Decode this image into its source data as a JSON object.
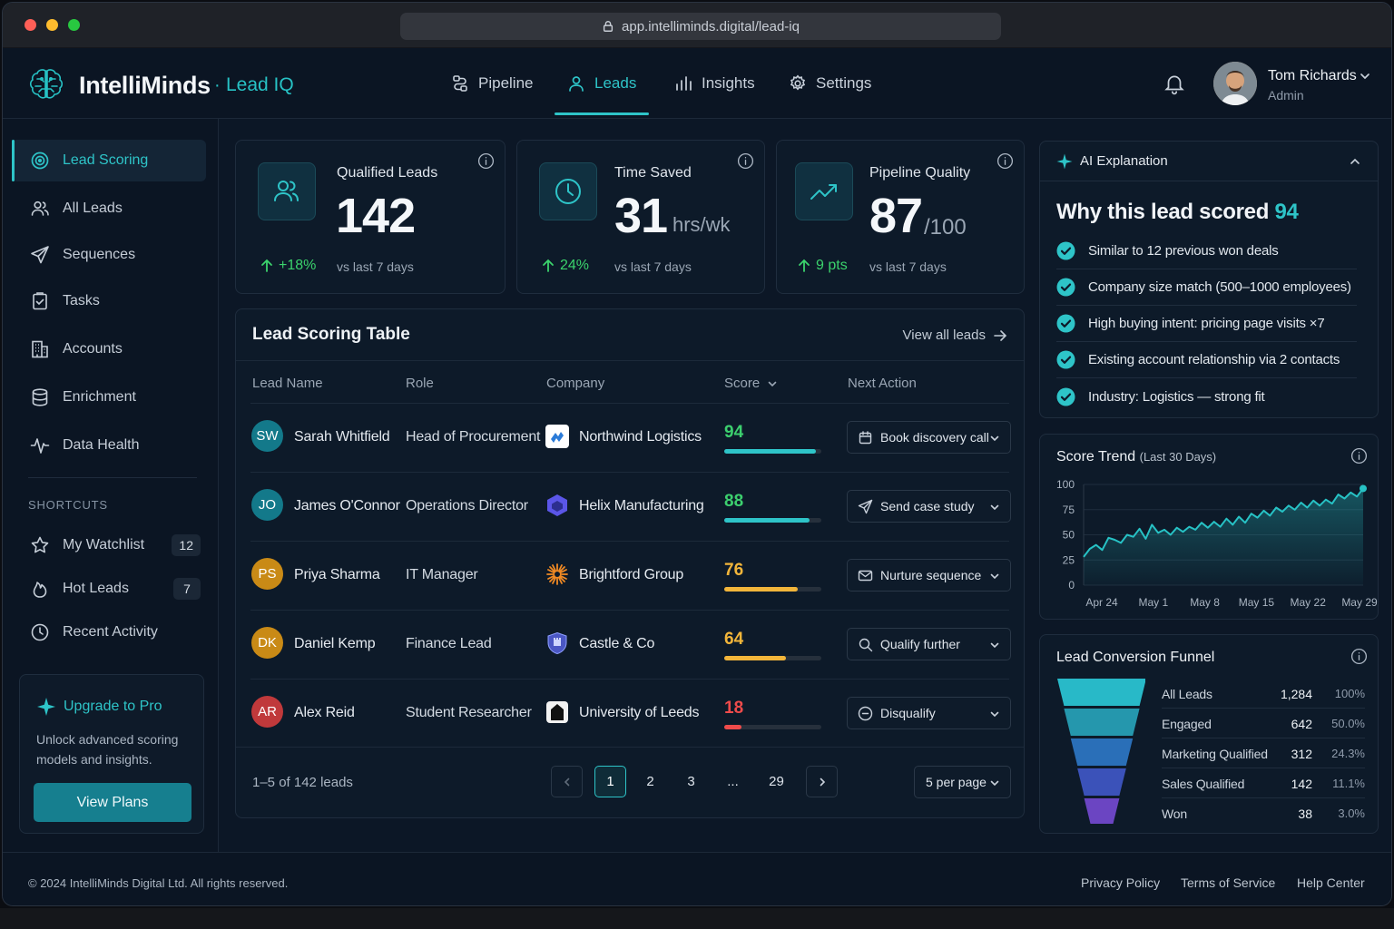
{
  "browser": {
    "url": "app.intelliminds.digital/lead-iq"
  },
  "brand": {
    "name": "IntelliMinds",
    "separator": "·",
    "product": "Lead IQ"
  },
  "nav": {
    "items": [
      {
        "label": "Pipeline",
        "icon": "pipeline-icon"
      },
      {
        "label": "Leads",
        "icon": "user-icon"
      },
      {
        "label": "Insights",
        "icon": "bar-chart-icon"
      },
      {
        "label": "Settings",
        "icon": "gear-icon"
      }
    ],
    "active": "Leads"
  },
  "user": {
    "name": "Tom Richards",
    "role": "Admin"
  },
  "sidebar": {
    "items": [
      {
        "label": "Lead Scoring",
        "icon": "target-icon"
      },
      {
        "label": "All Leads",
        "icon": "users-icon"
      },
      {
        "label": "Sequences",
        "icon": "send-icon"
      },
      {
        "label": "Tasks",
        "icon": "clipboard-icon"
      },
      {
        "label": "Accounts",
        "icon": "building-icon"
      },
      {
        "label": "Enrichment",
        "icon": "database-icon"
      },
      {
        "label": "Data Health",
        "icon": "pulse-icon"
      }
    ],
    "shortcuts_label": "SHORTCUTS",
    "shortcuts": [
      {
        "label": "My Watchlist",
        "icon": "star-icon",
        "badge": "12"
      },
      {
        "label": "Hot Leads",
        "icon": "flame-icon",
        "badge": "7"
      },
      {
        "label": "Recent Activity",
        "icon": "clock-icon"
      }
    ],
    "upgrade": {
      "title": "Upgrade to Pro",
      "text": "Unlock advanced scoring models and insights.",
      "button": "View Plans"
    }
  },
  "kpis": [
    {
      "label": "Qualified Leads",
      "value": "142",
      "unit": "",
      "delta": "+18%",
      "sub": "vs last 7 days",
      "icon": "users-icon"
    },
    {
      "label": "Time Saved",
      "value": "31",
      "unit": "hrs/wk",
      "delta": "24%",
      "sub": "vs last 7 days",
      "icon": "clock-icon"
    },
    {
      "label": "Pipeline Quality",
      "value": "87",
      "unit": "/100",
      "delta": "9 pts",
      "sub": "vs last 7 days",
      "icon": "trend-up-icon"
    }
  ],
  "table": {
    "title": "Lead Scoring Table",
    "view_all": "View all leads",
    "columns": [
      "Lead Name",
      "Role",
      "Company",
      "Score",
      "Next Action"
    ],
    "rows": [
      {
        "initials": "SW",
        "avatar_color": "#13798a",
        "name": "Sarah Whitfield",
        "role": "Head of Procurement",
        "company": "Northwind Logistics",
        "logo": "northwind-logo",
        "score": 94,
        "score_text": "94",
        "score_color": "#3ccf6e",
        "bar_color": "#2ec4c8",
        "action": "Book discovery call",
        "action_icon": "calendar-icon"
      },
      {
        "initials": "JO",
        "avatar_color": "#13798a",
        "name": "James O'Connor",
        "role": "Operations Director",
        "company": "Helix Manufacturing",
        "logo": "helix-logo",
        "score": 88,
        "score_text": "88",
        "score_color": "#3ccf6e",
        "bar_color": "#2ec4c8",
        "action": "Send case study",
        "action_icon": "send-icon"
      },
      {
        "initials": "PS",
        "avatar_color": "#c98a16",
        "name": "Priya Sharma",
        "role": "IT Manager",
        "company": "Brightford Group",
        "logo": "brightford-logo",
        "score": 76,
        "score_text": "76",
        "score_color": "#f2b53a",
        "bar_color": "#f2b53a",
        "action": "Nurture sequence",
        "action_icon": "mail-icon"
      },
      {
        "initials": "DK",
        "avatar_color": "#c98a16",
        "name": "Daniel Kemp",
        "role": "Finance Lead",
        "company": "Castle & Co",
        "logo": "castle-shield-logo",
        "score": 64,
        "score_text": "64",
        "score_color": "#f2b53a",
        "bar_color": "#f2b53a",
        "action": "Qualify further",
        "action_icon": "search-icon"
      },
      {
        "initials": "AR",
        "avatar_color": "#c0393b",
        "name": "Alex Reid",
        "role": "Student Researcher",
        "company": "University of Leeds",
        "logo": "university-logo",
        "score": 18,
        "score_text": "18",
        "score_color": "#ef4b4b",
        "bar_color": "#ef4b4b",
        "action": "Disqualify",
        "action_icon": "minus-circle-icon"
      }
    ],
    "pagination": {
      "info": "1–5 of 142 leads",
      "pages": [
        "1",
        "2",
        "3",
        "...",
        "29"
      ],
      "current": "1",
      "per_page": "5 per page"
    }
  },
  "ai_explanation": {
    "header": "AI Explanation",
    "title_prefix": "Why this lead scored",
    "title_score": "94",
    "reasons": [
      "Similar to 12 previous won deals",
      "Company size match (500–1000 employees)",
      "High buying intent: pricing page visits ×7",
      "Existing account relationship via 2 contacts",
      "Industry: Logistics — strong fit"
    ]
  },
  "score_trend": {
    "title": "Score Trend",
    "subtitle": "(Last 30 Days)",
    "chart_data": {
      "type": "area",
      "y_ticks": [
        "100",
        "75",
        "50",
        "25",
        "0"
      ],
      "ylim": [
        0,
        100
      ],
      "x_ticks": [
        "Apr 24",
        "May 1",
        "May 8",
        "May 15",
        "May 22",
        "May 29"
      ],
      "values": [
        28,
        36,
        40,
        35,
        47,
        45,
        42,
        50,
        48,
        56,
        46,
        60,
        52,
        55,
        50,
        57,
        53,
        58,
        55,
        62,
        57,
        63,
        58,
        66,
        60,
        68,
        62,
        71,
        67,
        74,
        69,
        77,
        73,
        79,
        75,
        82,
        77,
        84,
        79,
        85,
        81,
        90,
        86,
        92,
        88,
        96
      ],
      "color": "#27c2c5"
    }
  },
  "funnel": {
    "title": "Lead Conversion Funnel",
    "stages": [
      {
        "label": "All Leads",
        "count": "1,284",
        "pct": "100%",
        "color": "#28b9c8"
      },
      {
        "label": "Engaged",
        "count": "642",
        "pct": "50.0%",
        "color": "#2597ad"
      },
      {
        "label": "Marketing Qualified",
        "count": "312",
        "pct": "24.3%",
        "color": "#2a6fb8"
      },
      {
        "label": "Sales Qualified",
        "count": "142",
        "pct": "11.1%",
        "color": "#3b52b9"
      },
      {
        "label": "Won",
        "count": "38",
        "pct": "3.0%",
        "color": "#6b45c2"
      }
    ]
  },
  "footer": {
    "copyright": "© 2024 IntelliMinds Digital Ltd. All rights reserved.",
    "links": [
      "Privacy Policy",
      "Terms of Service",
      "Help Center"
    ]
  }
}
